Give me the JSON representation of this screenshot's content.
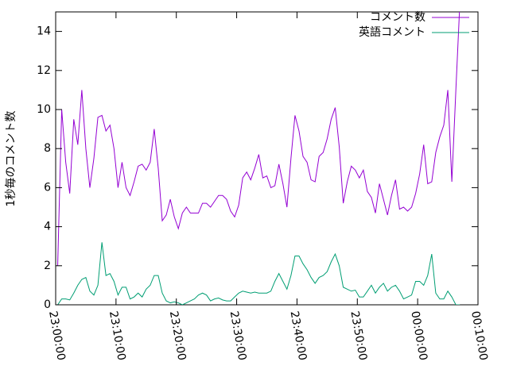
{
  "chart_data": {
    "type": "line",
    "ylabel": "1秒毎のコメント数",
    "x": [
      "23:00:20",
      "23:01:00",
      "23:01:40",
      "23:02:20",
      "23:03:00",
      "23:03:40",
      "23:04:20",
      "23:05:00",
      "23:05:40",
      "23:06:20",
      "23:07:00",
      "23:07:40",
      "23:08:20",
      "23:09:00",
      "23:09:40",
      "23:10:20",
      "23:11:00",
      "23:11:40",
      "23:12:20",
      "23:13:00",
      "23:13:40",
      "23:14:20",
      "23:15:00",
      "23:15:40",
      "23:16:20",
      "23:17:00",
      "23:17:40",
      "23:18:20",
      "23:19:00",
      "23:19:40",
      "23:20:20",
      "23:21:00",
      "23:21:40",
      "23:22:20",
      "23:23:00",
      "23:23:40",
      "23:24:20",
      "23:25:00",
      "23:25:40",
      "23:26:20",
      "23:27:00",
      "23:27:40",
      "23:28:20",
      "23:29:00",
      "23:29:40",
      "23:30:20",
      "23:31:00",
      "23:31:40",
      "23:32:20",
      "23:33:00",
      "23:33:40",
      "23:34:20",
      "23:35:00",
      "23:35:40",
      "23:36:20",
      "23:37:00",
      "23:37:40",
      "23:38:20",
      "23:39:00",
      "23:39:40",
      "23:40:20",
      "23:41:00",
      "23:41:40",
      "23:42:20",
      "23:43:00",
      "23:43:40",
      "23:44:20",
      "23:45:00",
      "23:45:40",
      "23:46:20",
      "23:47:00",
      "23:47:40",
      "23:48:20",
      "23:49:00",
      "23:49:40",
      "23:50:20",
      "23:51:00",
      "23:51:40",
      "23:52:20",
      "23:53:00",
      "23:53:40",
      "23:54:20",
      "23:55:00",
      "23:55:40",
      "23:56:20",
      "23:57:00",
      "23:57:40",
      "23:58:20",
      "23:59:00",
      "23:59:40",
      "00:00:20",
      "00:01:00",
      "00:01:40",
      "00:02:20",
      "00:03:00",
      "00:03:40",
      "00:04:20",
      "00:05:00",
      "00:05:40",
      "00:06:20",
      "00:07:00"
    ],
    "series": [
      {
        "name": "コメント数",
        "color": "#9400d3",
        "values": [
          2.0,
          10.0,
          7.3,
          5.7,
          9.5,
          8.2,
          11,
          8,
          6,
          7.5,
          9.6,
          9.7,
          8.9,
          9.2,
          8,
          6,
          7.3,
          6,
          5.6,
          6.3,
          7.1,
          7.2,
          6.9,
          7.3,
          9.0,
          7,
          4.3,
          4.6,
          5.4,
          4.5,
          3.9,
          4.7,
          5.0,
          4.7,
          4.7,
          4.7,
          5.2,
          5.2,
          5.0,
          5.3,
          5.6,
          5.6,
          5.4,
          4.8,
          4.5,
          5.1,
          6.5,
          6.8,
          6.4,
          7.0,
          7.7,
          6.5,
          6.6,
          6.0,
          6.1,
          7.2,
          6.2,
          5.0,
          7.5,
          9.7,
          8.9,
          7.6,
          7.3,
          6.4,
          6.3,
          7.6,
          7.8,
          8.5,
          9.5,
          10.1,
          8.1,
          5.2,
          6.3,
          7.1,
          6.9,
          6.5,
          6.9,
          5.8,
          5.5,
          4.7,
          6.2,
          5.4,
          4.6,
          5.6,
          6.4,
          4.9,
          5.0,
          4.8,
          5.0,
          5.7,
          6.7,
          8.2,
          6.2,
          6.3,
          7.8,
          8.6,
          9.2,
          11,
          6.3,
          11,
          15.5
        ]
      },
      {
        "name": "英語コメント",
        "color": "#009e73",
        "values": [
          0,
          0.3,
          0.3,
          0.25,
          0.6,
          1.0,
          1.3,
          1.4,
          0.7,
          0.5,
          1.0,
          3.2,
          1.5,
          1.6,
          1.2,
          0.5,
          0.9,
          0.9,
          0.3,
          0.4,
          0.6,
          0.4,
          0.8,
          1.0,
          1.5,
          1.5,
          0.6,
          0.2,
          0.1,
          0.15,
          0.1,
          0,
          0.1,
          0.2,
          0.3,
          0.5,
          0.6,
          0.5,
          0.2,
          0.3,
          0.35,
          0.25,
          0.2,
          0.2,
          0.4,
          0.6,
          0.7,
          0.65,
          0.6,
          0.65,
          0.6,
          0.6,
          0.6,
          0.7,
          1.2,
          1.6,
          1.2,
          0.8,
          1.5,
          2.5,
          2.5,
          2.1,
          1.8,
          1.4,
          1.1,
          1.4,
          1.5,
          1.7,
          2.2,
          2.6,
          2.0,
          0.9,
          0.8,
          0.7,
          0.75,
          0.4,
          0.4,
          0.7,
          1.0,
          0.6,
          0.9,
          1.1,
          0.7,
          0.9,
          1.0,
          0.7,
          0.3,
          0.4,
          0.5,
          1.2,
          1.2,
          1.0,
          1.5,
          2.6,
          0.6,
          0.3,
          0.3,
          0.7,
          0.4,
          0,
          0
        ]
      }
    ],
    "xlim": [
      "23:00:00",
      "00:10:00"
    ],
    "xticks": [
      "23:00:00",
      "23:10:00",
      "23:20:00",
      "23:30:00",
      "23:40:00",
      "23:50:00",
      "00:00:00",
      "00:10:00"
    ],
    "ylim": [
      0,
      15
    ],
    "yticks": [
      0,
      2,
      4,
      6,
      8,
      10,
      12,
      14
    ],
    "legend": "top-right"
  }
}
